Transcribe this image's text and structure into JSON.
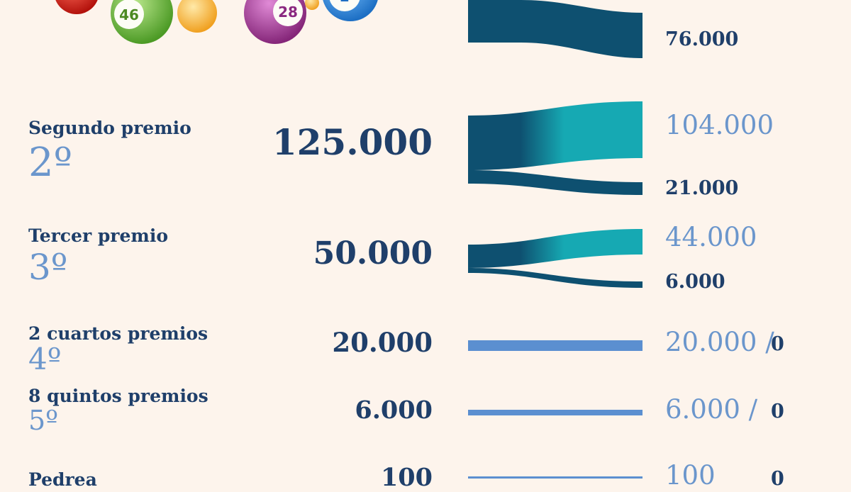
{
  "balls": [
    {
      "number": "46",
      "color": "#7cc24a"
    },
    {
      "number": "28",
      "color": "#b04aa8"
    }
  ],
  "prizes": [
    {
      "title": "",
      "ordinal": "",
      "total": "",
      "outputs": [
        {
          "label": "76.000"
        }
      ]
    },
    {
      "title": "Segundo premio",
      "ordinal": "2º",
      "total": "125.000",
      "outputs": [
        {
          "label": "104.000"
        },
        {
          "label": "21.000"
        }
      ]
    },
    {
      "title": "Tercer premio",
      "ordinal": "3º",
      "total": "50.000",
      "outputs": [
        {
          "label": "44.000"
        },
        {
          "label": "6.000"
        }
      ]
    },
    {
      "title": "2 cuartos premios",
      "ordinal": "4º",
      "total": "20.000",
      "outputs": [
        {
          "label": "20.000 /"
        },
        {
          "label": "0"
        }
      ]
    },
    {
      "title": "8 quintos premios",
      "ordinal": "5º",
      "total": "6.000",
      "outputs": [
        {
          "label": "6.000 /"
        },
        {
          "label": "0"
        }
      ]
    },
    {
      "title": "Pedrea",
      "ordinal": "",
      "total": "100",
      "outputs": [
        {
          "label": "100"
        },
        {
          "label": "0"
        }
      ]
    }
  ],
  "colors": {
    "dark_flow": "#0e5070",
    "teal_flow": "#16a9b3",
    "light_flow": "#5b8fd0",
    "navy_text": "#1f3f6a",
    "light_text": "#6b96cc",
    "background": "#fdf4ec"
  }
}
